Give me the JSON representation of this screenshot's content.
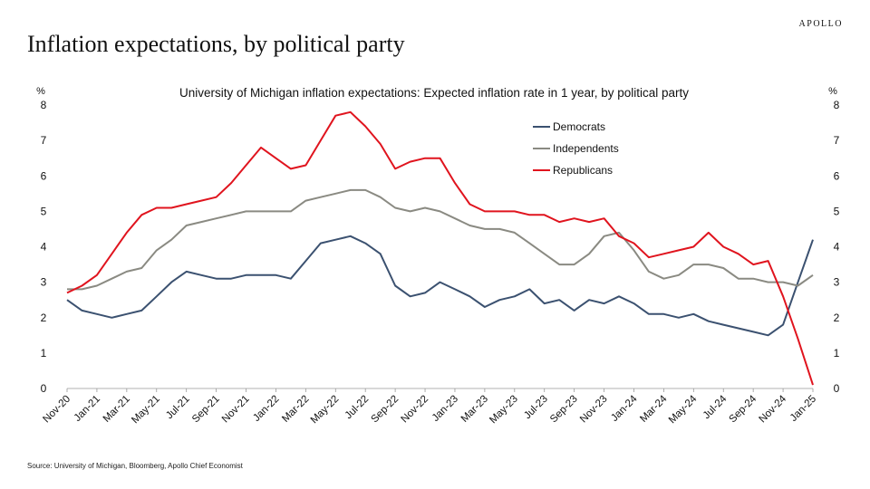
{
  "brand": "APOLLO",
  "headline": "Inflation expectations, by political party",
  "source": "Source: University of Michigan, Bloomberg, Apollo Chief Economist",
  "colors": {
    "Democrats": "#3b5170",
    "Independents": "#8a8a82",
    "Republicans": "#e0141e"
  },
  "chart_data": {
    "type": "line",
    "title": "University of Michigan inflation expectations: Expected inflation rate in 1 year, by political party",
    "ylabel_left": "%",
    "ylabel_right": "%",
    "ylim": [
      0,
      8
    ],
    "yticks": [
      0,
      1,
      2,
      3,
      4,
      5,
      6,
      7,
      8
    ],
    "grid": false,
    "legend_position": "top-center",
    "x": [
      "Nov-20",
      "Dec-20",
      "Jan-21",
      "Feb-21",
      "Mar-21",
      "Apr-21",
      "May-21",
      "Jun-21",
      "Jul-21",
      "Aug-21",
      "Sep-21",
      "Oct-21",
      "Nov-21",
      "Dec-21",
      "Jan-22",
      "Feb-22",
      "Mar-22",
      "Apr-22",
      "May-22",
      "Jun-22",
      "Jul-22",
      "Aug-22",
      "Sep-22",
      "Oct-22",
      "Nov-22",
      "Dec-22",
      "Jan-23",
      "Feb-23",
      "Mar-23",
      "Apr-23",
      "May-23",
      "Jun-23",
      "Jul-23",
      "Aug-23",
      "Sep-23",
      "Oct-23",
      "Nov-23",
      "Dec-23",
      "Jan-24",
      "Feb-24",
      "Mar-24",
      "Apr-24",
      "May-24",
      "Jun-24",
      "Jul-24",
      "Aug-24",
      "Sep-24",
      "Oct-24",
      "Nov-24",
      "Dec-24",
      "Jan-25"
    ],
    "tick_labels": [
      "Nov-20",
      "Jan-21",
      "Mar-21",
      "May-21",
      "Jul-21",
      "Sep-21",
      "Nov-21",
      "Jan-22",
      "Mar-22",
      "May-22",
      "Jul-22",
      "Sep-22",
      "Nov-22",
      "Jan-23",
      "Mar-23",
      "May-23",
      "Jul-23",
      "Sep-23",
      "Nov-23",
      "Jan-24",
      "Mar-24",
      "May-24",
      "Jul-24",
      "Sep-24",
      "Nov-24",
      "Jan-25"
    ],
    "series": [
      {
        "name": "Democrats",
        "values": [
          2.5,
          2.2,
          2.1,
          2.0,
          2.1,
          2.2,
          2.6,
          3.0,
          3.3,
          3.2,
          3.1,
          3.1,
          3.2,
          3.2,
          3.2,
          3.1,
          3.6,
          4.1,
          4.2,
          4.3,
          4.1,
          3.8,
          2.9,
          2.6,
          2.7,
          3.0,
          2.8,
          2.6,
          2.3,
          2.5,
          2.6,
          2.8,
          2.4,
          2.5,
          2.2,
          2.5,
          2.4,
          2.6,
          2.4,
          2.1,
          2.1,
          2.0,
          2.1,
          1.9,
          1.8,
          1.7,
          1.6,
          1.5,
          1.8,
          3.0,
          4.2
        ]
      },
      {
        "name": "Independents",
        "values": [
          2.8,
          2.8,
          2.9,
          3.1,
          3.3,
          3.4,
          3.9,
          4.2,
          4.6,
          4.7,
          4.8,
          4.9,
          5.0,
          5.0,
          5.0,
          5.0,
          5.3,
          5.4,
          5.5,
          5.6,
          5.6,
          5.4,
          5.1,
          5.0,
          5.1,
          5.0,
          4.8,
          4.6,
          4.5,
          4.5,
          4.4,
          4.1,
          3.8,
          3.5,
          3.5,
          3.8,
          4.3,
          4.4,
          3.9,
          3.3,
          3.1,
          3.2,
          3.5,
          3.5,
          3.4,
          3.1,
          3.1,
          3.0,
          3.0,
          2.9,
          3.2
        ]
      },
      {
        "name": "Republicans",
        "values": [
          2.7,
          2.9,
          3.2,
          3.8,
          4.4,
          4.9,
          5.1,
          5.1,
          5.2,
          5.3,
          5.4,
          5.8,
          6.3,
          6.8,
          6.5,
          6.2,
          6.3,
          7.0,
          7.7,
          7.8,
          7.4,
          6.9,
          6.2,
          6.4,
          6.5,
          6.5,
          5.8,
          5.2,
          5.0,
          5.0,
          5.0,
          4.9,
          4.9,
          4.7,
          4.8,
          4.7,
          4.8,
          4.3,
          4.1,
          3.7,
          3.8,
          3.9,
          4.0,
          4.4,
          4.0,
          3.8,
          3.5,
          3.6,
          2.6,
          1.4,
          0.1
        ]
      }
    ]
  }
}
